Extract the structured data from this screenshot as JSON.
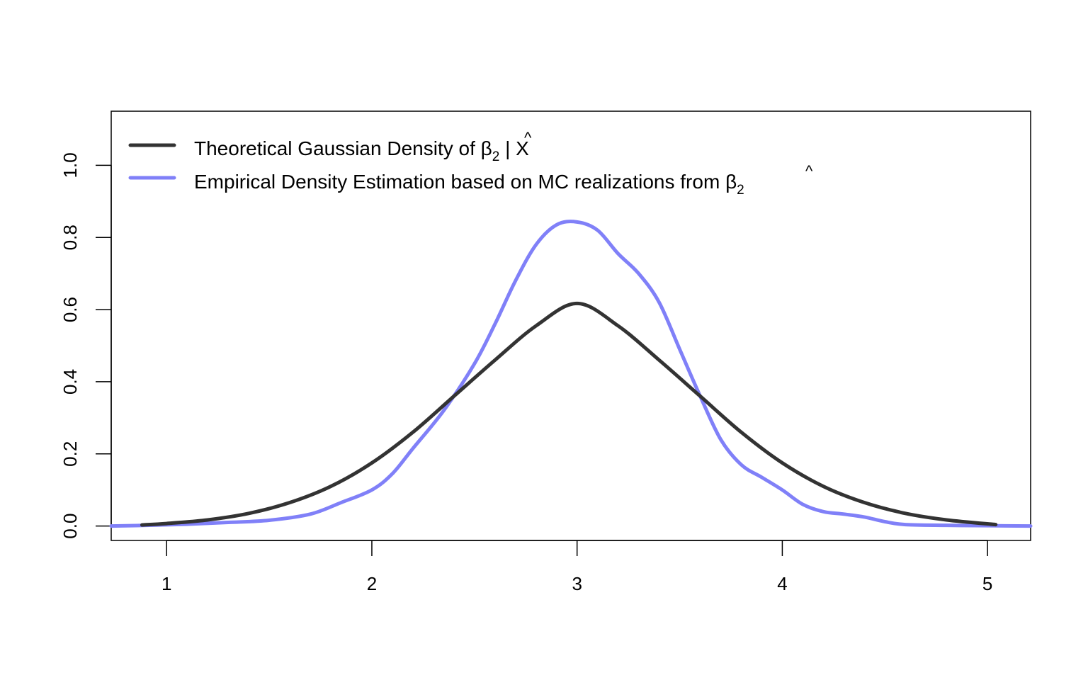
{
  "chart_data": {
    "type": "line",
    "title": "",
    "xlabel": "",
    "ylabel": "",
    "xlim": [
      0.73,
      5.21
    ],
    "ylim": [
      -0.04,
      1.15
    ],
    "x_ticks": [
      "1",
      "2",
      "3",
      "4",
      "5"
    ],
    "y_ticks": [
      "0.0",
      "0.2",
      "0.4",
      "0.6",
      "0.8",
      "1.0"
    ],
    "grid": false,
    "legend_position": "top-left",
    "series": [
      {
        "name_main": "Theoretical Gaussian Density of ",
        "name_hat": "^",
        "name_symbol": "β",
        "name_sub": "2",
        "name_suffix": " | X",
        "color": "#333333",
        "x": [
          0.88,
          1.0,
          1.2,
          1.4,
          1.6,
          1.8,
          2.0,
          2.2,
          2.4,
          2.6,
          2.8,
          3.0,
          3.2,
          3.4,
          3.6,
          3.8,
          4.0,
          4.2,
          4.4,
          4.6,
          4.8,
          5.04
        ],
        "y": [
          0.003,
          0.007,
          0.017,
          0.035,
          0.065,
          0.11,
          0.175,
          0.26,
          0.36,
          0.46,
          0.555,
          0.617,
          0.555,
          0.46,
          0.36,
          0.26,
          0.175,
          0.11,
          0.065,
          0.035,
          0.017,
          0.004
        ]
      },
      {
        "name_main": "Empirical Density Estimation based on MC realizations from ",
        "name_hat": "^",
        "name_symbol": "β",
        "name_sub": "2",
        "name_suffix": "",
        "color": "#8080f8",
        "x": [
          0.73,
          0.9,
          1.1,
          1.3,
          1.5,
          1.7,
          1.85,
          2.0,
          2.1,
          2.2,
          2.35,
          2.5,
          2.6,
          2.7,
          2.8,
          2.9,
          3.0,
          3.1,
          3.2,
          3.3,
          3.4,
          3.5,
          3.6,
          3.7,
          3.8,
          3.9,
          4.0,
          4.1,
          4.2,
          4.3,
          4.4,
          4.5,
          4.6,
          4.8,
          5.0,
          5.21
        ],
        "y": [
          0.0,
          0.002,
          0.005,
          0.01,
          0.016,
          0.033,
          0.065,
          0.1,
          0.145,
          0.215,
          0.32,
          0.45,
          0.56,
          0.68,
          0.78,
          0.835,
          0.843,
          0.82,
          0.755,
          0.7,
          0.62,
          0.49,
          0.36,
          0.24,
          0.17,
          0.135,
          0.1,
          0.06,
          0.04,
          0.033,
          0.025,
          0.012,
          0.004,
          0.002,
          0.001,
          0.0
        ]
      }
    ]
  }
}
